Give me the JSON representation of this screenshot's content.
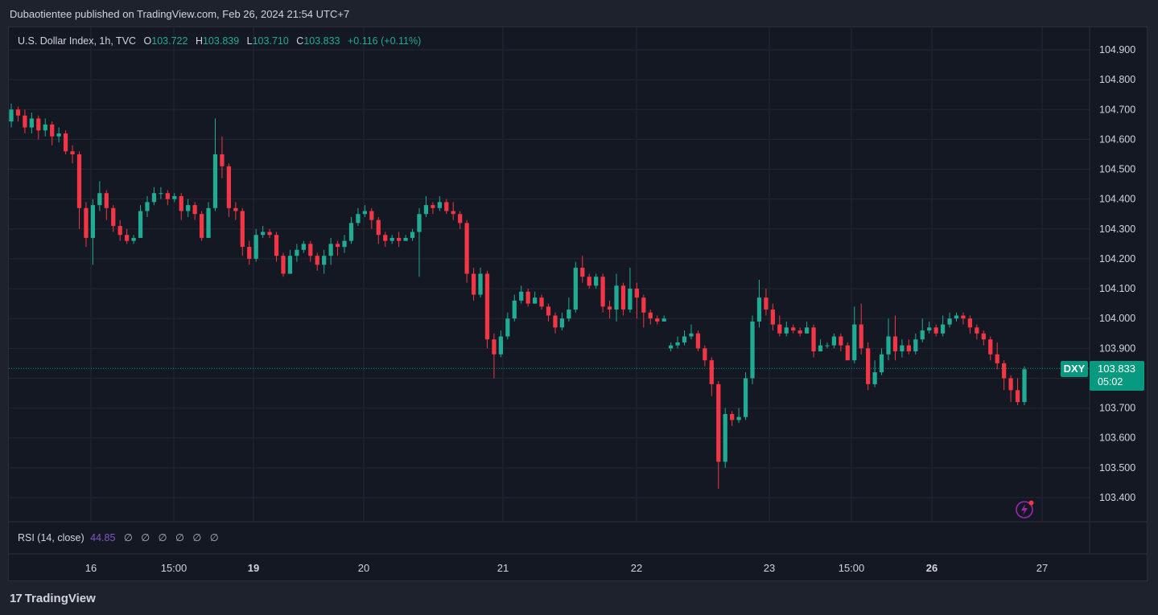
{
  "header": {
    "published_text": "Dubaotientee published on TradingView.com, Feb 26, 2024 21:54 UTC+7"
  },
  "legend": {
    "title": "U.S. Dollar Index, 1h, TVC",
    "o_label": "O",
    "o_value": "103.722",
    "h_label": "H",
    "h_value": "103.839",
    "l_label": "L",
    "l_value": "103.710",
    "c_label": "C",
    "c_value": "103.833",
    "change": "+0.116 (+0.11%)"
  },
  "rsi": {
    "label": "RSI (14, close)",
    "value": "44.85",
    "zeros": [
      "∅",
      "∅",
      "∅",
      "∅",
      "∅",
      "∅"
    ]
  },
  "price_tag": {
    "symbol": "DXY",
    "price": "103.833",
    "countdown": "05:02"
  },
  "branding": {
    "logo_text": "TradingView",
    "logo_mark": "17"
  },
  "colors": {
    "up": "#22ab94",
    "down": "#f23645",
    "bg": "#141823",
    "grid": "#232734",
    "accent": "#089981"
  },
  "icons": {
    "flash": "lightning-icon"
  },
  "chart_data": {
    "type": "candlestick",
    "title": "U.S. Dollar Index, 1h, TVC",
    "ylim": [
      103.32,
      104.96
    ],
    "y_ticks": [
      "104.900",
      "104.800",
      "104.700",
      "104.600",
      "104.500",
      "104.400",
      "104.300",
      "104.200",
      "104.100",
      "104.000",
      "103.900",
      "103.800",
      "103.700",
      "103.600",
      "103.500",
      "103.400"
    ],
    "x_ticks": [
      {
        "label": "16",
        "bold": false
      },
      {
        "label": "15:00",
        "bold": false
      },
      {
        "label": "19",
        "bold": true
      },
      {
        "label": "20",
        "bold": false
      },
      {
        "label": "21",
        "bold": false
      },
      {
        "label": "22",
        "bold": false
      },
      {
        "label": "23",
        "bold": false
      },
      {
        "label": "15:00",
        "bold": false
      },
      {
        "label": "26",
        "bold": true
      },
      {
        "label": "27",
        "bold": false
      }
    ],
    "last_price": 103.833,
    "grid": true,
    "candles": [
      [
        104.66,
        104.7,
        104.72,
        104.64
      ],
      [
        104.7,
        104.68,
        104.71,
        104.66
      ],
      [
        104.68,
        104.64,
        104.7,
        104.62
      ],
      [
        104.64,
        104.67,
        104.69,
        104.62
      ],
      [
        104.67,
        104.63,
        104.68,
        104.6
      ],
      [
        104.63,
        104.65,
        104.67,
        104.61
      ],
      [
        104.65,
        104.61,
        104.66,
        104.58
      ],
      [
        104.61,
        104.62,
        104.64,
        104.59
      ],
      [
        104.62,
        104.56,
        104.63,
        104.55
      ],
      [
        104.56,
        104.55,
        104.58,
        104.52
      ],
      [
        104.55,
        104.37,
        104.56,
        104.3
      ],
      [
        104.37,
        104.27,
        104.39,
        104.24
      ],
      [
        104.27,
        104.38,
        104.4,
        104.18
      ],
      [
        104.38,
        104.42,
        104.46,
        104.36
      ],
      [
        104.42,
        104.37,
        104.43,
        104.33
      ],
      [
        104.37,
        104.31,
        104.38,
        104.29
      ],
      [
        104.31,
        104.28,
        104.33,
        104.26
      ],
      [
        104.28,
        104.26,
        104.3,
        104.25
      ],
      [
        104.26,
        104.27,
        104.28,
        104.25
      ],
      [
        104.27,
        104.36,
        104.38,
        104.27
      ],
      [
        104.36,
        104.39,
        104.41,
        104.34
      ],
      [
        104.39,
        104.42,
        104.44,
        104.38
      ],
      [
        104.42,
        104.42,
        104.44,
        104.4
      ],
      [
        104.42,
        104.4,
        104.43,
        104.38
      ],
      [
        104.4,
        104.41,
        104.42,
        104.39
      ],
      [
        104.41,
        104.36,
        104.42,
        104.33
      ],
      [
        104.36,
        104.38,
        104.4,
        104.34
      ],
      [
        104.38,
        104.35,
        104.39,
        104.33
      ],
      [
        104.35,
        104.27,
        104.36,
        104.26
      ],
      [
        104.27,
        104.37,
        104.39,
        104.27
      ],
      [
        104.37,
        104.55,
        104.67,
        104.36
      ],
      [
        104.55,
        104.51,
        104.61,
        104.47
      ],
      [
        104.51,
        104.37,
        104.52,
        104.34
      ],
      [
        104.37,
        104.36,
        104.39,
        104.33
      ],
      [
        104.36,
        104.24,
        104.37,
        104.21
      ],
      [
        104.24,
        104.2,
        104.26,
        104.18
      ],
      [
        104.2,
        104.28,
        104.3,
        104.19
      ],
      [
        104.28,
        104.29,
        104.31,
        104.27
      ],
      [
        104.29,
        104.28,
        104.3,
        104.27
      ],
      [
        104.28,
        104.21,
        104.29,
        104.19
      ],
      [
        104.21,
        104.15,
        104.22,
        104.14
      ],
      [
        104.15,
        104.21,
        104.23,
        104.15
      ],
      [
        104.21,
        104.23,
        104.25,
        104.19
      ],
      [
        104.23,
        104.25,
        104.26,
        104.22
      ],
      [
        104.25,
        104.21,
        104.26,
        104.19
      ],
      [
        104.21,
        104.18,
        104.22,
        104.16
      ],
      [
        104.18,
        104.21,
        104.23,
        104.15
      ],
      [
        104.21,
        104.25,
        104.27,
        104.18
      ],
      [
        104.25,
        104.24,
        104.26,
        104.21
      ],
      [
        104.24,
        104.26,
        104.28,
        104.22
      ],
      [
        104.26,
        104.32,
        104.34,
        104.25
      ],
      [
        104.32,
        104.35,
        104.37,
        104.31
      ],
      [
        104.35,
        104.36,
        104.38,
        104.34
      ],
      [
        104.36,
        104.33,
        104.37,
        104.3
      ],
      [
        104.33,
        104.28,
        104.34,
        104.25
      ],
      [
        104.28,
        104.26,
        104.29,
        104.24
      ],
      [
        104.26,
        104.27,
        104.28,
        104.25
      ],
      [
        104.27,
        104.26,
        104.29,
        104.24
      ],
      [
        104.26,
        104.27,
        104.28,
        104.26
      ],
      [
        104.27,
        104.29,
        104.3,
        104.26
      ],
      [
        104.29,
        104.35,
        104.37,
        104.14
      ],
      [
        104.35,
        104.38,
        104.41,
        104.34
      ],
      [
        104.38,
        104.37,
        104.39,
        104.35
      ],
      [
        104.37,
        104.39,
        104.41,
        104.36
      ],
      [
        104.39,
        104.36,
        104.4,
        104.35
      ],
      [
        104.36,
        104.35,
        104.39,
        104.33
      ],
      [
        104.35,
        104.32,
        104.36,
        104.3
      ],
      [
        104.32,
        104.15,
        104.33,
        104.12
      ],
      [
        104.15,
        104.08,
        104.17,
        104.06
      ],
      [
        104.08,
        104.15,
        104.17,
        104.07
      ],
      [
        104.15,
        103.93,
        104.16,
        103.9
      ],
      [
        103.93,
        103.88,
        103.95,
        103.8
      ],
      [
        103.88,
        103.94,
        103.96,
        103.87
      ],
      [
        103.94,
        104.0,
        104.02,
        103.93
      ],
      [
        104.0,
        104.06,
        104.08,
        103.99
      ],
      [
        104.06,
        104.09,
        104.11,
        104.05
      ],
      [
        104.09,
        104.05,
        104.1,
        104.04
      ],
      [
        104.05,
        104.07,
        104.09,
        104.05
      ],
      [
        104.07,
        104.04,
        104.08,
        104.03
      ],
      [
        104.04,
        104.01,
        104.05,
        103.99
      ],
      [
        104.01,
        103.97,
        104.02,
        103.95
      ],
      [
        103.97,
        104.0,
        104.02,
        103.96
      ],
      [
        104.0,
        104.03,
        104.07,
        103.99
      ],
      [
        104.03,
        104.17,
        104.19,
        104.02
      ],
      [
        104.17,
        104.14,
        104.21,
        104.12
      ],
      [
        104.14,
        104.11,
        104.15,
        104.1
      ],
      [
        104.11,
        104.14,
        104.15,
        104.1
      ],
      [
        104.14,
        104.04,
        104.15,
        104.02
      ],
      [
        104.04,
        104.03,
        104.06,
        104.0
      ],
      [
        104.03,
        104.11,
        104.15,
        103.99
      ],
      [
        104.11,
        104.03,
        104.12,
        104.01
      ],
      [
        104.03,
        104.1,
        104.17,
        104.02
      ],
      [
        104.1,
        104.07,
        104.12,
        104.0
      ],
      [
        104.07,
        104.02,
        104.08,
        103.97
      ],
      [
        104.02,
        104.0,
        104.03,
        103.98
      ],
      [
        104.0,
        103.99,
        104.01,
        103.98
      ],
      [
        103.99,
        104.0,
        104.01,
        103.99
      ],
      [
        103.9,
        103.91,
        103.92,
        103.89
      ],
      [
        103.91,
        103.92,
        103.94,
        103.9
      ],
      [
        103.92,
        103.94,
        103.96,
        103.91
      ],
      [
        103.94,
        103.95,
        103.98,
        103.93
      ],
      [
        103.95,
        103.9,
        103.96,
        103.89
      ],
      [
        103.9,
        103.86,
        103.91,
        103.84
      ],
      [
        103.86,
        103.78,
        103.87,
        103.74
      ],
      [
        103.78,
        103.52,
        103.79,
        103.43
      ],
      [
        103.52,
        103.68,
        103.7,
        103.5
      ],
      [
        103.68,
        103.66,
        103.69,
        103.64
      ],
      [
        103.66,
        103.67,
        103.7,
        103.65
      ],
      [
        103.67,
        103.8,
        103.82,
        103.66
      ],
      [
        103.8,
        103.99,
        104.01,
        103.78
      ],
      [
        103.99,
        104.07,
        104.13,
        103.97
      ],
      [
        104.07,
        104.03,
        104.1,
        104.01
      ],
      [
        104.03,
        103.98,
        104.05,
        103.96
      ],
      [
        103.98,
        103.95,
        104.01,
        103.94
      ],
      [
        103.95,
        103.97,
        103.99,
        103.94
      ],
      [
        103.97,
        103.96,
        103.98,
        103.95
      ],
      [
        103.96,
        103.95,
        103.97,
        103.94
      ],
      [
        103.95,
        103.97,
        103.99,
        103.95
      ],
      [
        103.97,
        103.89,
        103.98,
        103.87
      ],
      [
        103.89,
        103.91,
        103.93,
        103.89
      ],
      [
        103.91,
        103.91,
        103.92,
        103.9
      ],
      [
        103.91,
        103.94,
        103.95,
        103.9
      ],
      [
        103.94,
        103.91,
        103.95,
        103.89
      ],
      [
        103.91,
        103.86,
        103.92,
        103.86
      ],
      [
        103.86,
        103.98,
        104.04,
        103.85
      ],
      [
        103.98,
        103.9,
        104.05,
        103.88
      ],
      [
        103.9,
        103.78,
        103.92,
        103.76
      ],
      [
        103.78,
        103.82,
        103.86,
        103.77
      ],
      [
        103.82,
        103.88,
        103.9,
        103.81
      ],
      [
        103.88,
        103.94,
        104.0,
        103.86
      ],
      [
        103.94,
        103.89,
        104.01,
        103.86
      ],
      [
        103.89,
        103.91,
        103.93,
        103.87
      ],
      [
        103.91,
        103.89,
        103.93,
        103.88
      ],
      [
        103.89,
        103.93,
        103.95,
        103.88
      ],
      [
        103.93,
        103.96,
        104.0,
        103.92
      ],
      [
        103.96,
        103.97,
        103.99,
        103.95
      ],
      [
        103.97,
        103.95,
        103.98,
        103.94
      ],
      [
        103.95,
        103.98,
        104.01,
        103.94
      ],
      [
        103.98,
        104.0,
        104.02,
        103.97
      ],
      [
        104.0,
        104.01,
        104.02,
        103.99
      ],
      [
        104.01,
        104.0,
        104.02,
        103.98
      ],
      [
        104.0,
        103.97,
        104.01,
        103.95
      ],
      [
        103.97,
        103.95,
        103.98,
        103.93
      ],
      [
        103.95,
        103.93,
        103.96,
        103.91
      ],
      [
        103.93,
        103.88,
        103.94,
        103.86
      ],
      [
        103.88,
        103.85,
        103.92,
        103.83
      ],
      [
        103.85,
        103.8,
        103.86,
        103.76
      ],
      [
        103.8,
        103.76,
        103.81,
        103.72
      ],
      [
        103.76,
        103.72,
        103.8,
        103.71
      ],
      [
        103.72,
        103.83,
        103.84,
        103.71
      ]
    ]
  }
}
